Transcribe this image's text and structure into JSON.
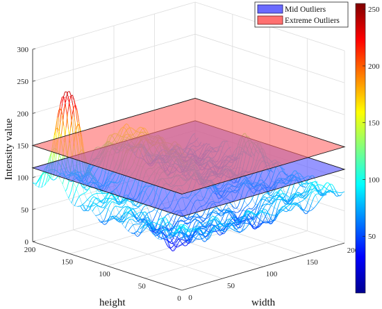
{
  "chart_data": {
    "type": "surface3d",
    "title": "",
    "xlabel": "width",
    "ylabel": "height",
    "zlabel": "Intensity value",
    "xlim": [
      0,
      200
    ],
    "ylim": [
      0,
      200
    ],
    "zlim": [
      0,
      300
    ],
    "x_ticks": [
      "0",
      "50",
      "100",
      "150",
      "200"
    ],
    "y_ticks": [
      "0",
      "50",
      "100",
      "150",
      "200"
    ],
    "z_ticks": [
      "0",
      "50",
      "100",
      "150",
      "200",
      "250",
      "300"
    ],
    "colormap": "jet",
    "colorbar_range": [
      0,
      255
    ],
    "colorbar_ticks": [
      "50",
      "100",
      "150",
      "200",
      "250"
    ],
    "grid": true,
    "legend_position": "top-right",
    "planes": [
      {
        "name": "Mid Outliers",
        "z": 115,
        "color": "#5555ff"
      },
      {
        "name": "Extreme Outliers",
        "z": 150,
        "color": "#ff6b6b"
      }
    ],
    "surface_peaks": [
      {
        "width": 15,
        "height": 170,
        "intensity": 255
      },
      {
        "width": 185,
        "height": 110,
        "intensity": 130
      },
      {
        "width": 90,
        "height": 150,
        "intensity": 160
      }
    ],
    "baseline_intensity": 80
  }
}
